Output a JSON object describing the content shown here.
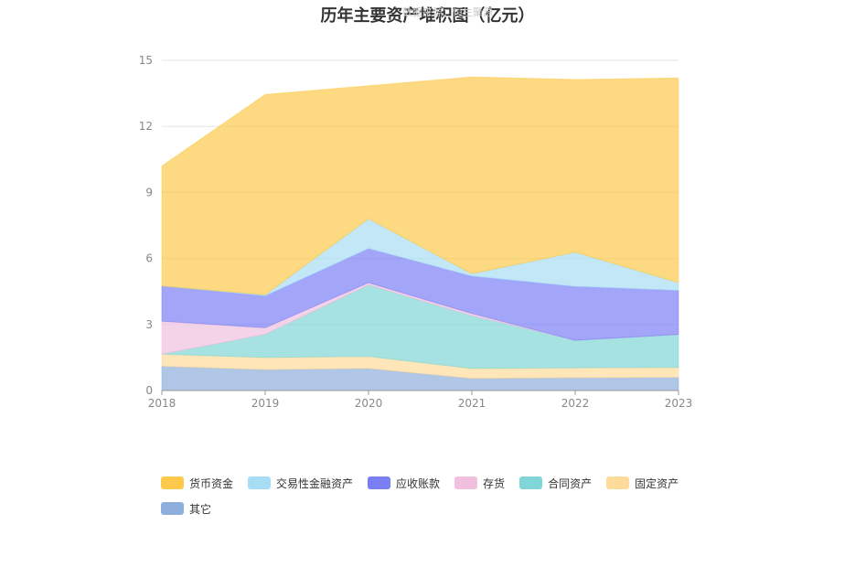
{
  "title": "历年主要资产堆积图（亿元）",
  "watermark": "数据来源：恒生聚源",
  "chart_data": {
    "type": "area",
    "stacked": true,
    "title": "历年主要资产堆积图（亿元）",
    "xlabel": "",
    "ylabel": "",
    "x": [
      "2018",
      "2019",
      "2020",
      "2021",
      "2022",
      "2023"
    ],
    "ylim": [
      0,
      15
    ],
    "yticks": [
      "0",
      "3",
      "6",
      "9",
      "12",
      "15"
    ],
    "grid": true,
    "legend_position": "bottom",
    "series": [
      {
        "name": "其它",
        "color": "#8eaedc",
        "values": [
          1.1,
          0.95,
          1.0,
          0.55,
          0.58,
          0.6
        ]
      },
      {
        "name": "固定资产",
        "color": "#fedb9b",
        "values": [
          0.55,
          0.55,
          0.55,
          0.45,
          0.45,
          0.45
        ]
      },
      {
        "name": "合同资产",
        "color": "#80d6d6",
        "values": [
          0.0,
          1.05,
          3.25,
          2.4,
          1.25,
          1.5
        ]
      },
      {
        "name": "存货",
        "color": "#f0c0de",
        "values": [
          1.5,
          0.3,
          0.1,
          0.1,
          0.0,
          0.0
        ]
      },
      {
        "name": "应收账款",
        "color": "#7b7ff5",
        "values": [
          1.6,
          1.45,
          1.55,
          1.7,
          2.45,
          2.0
        ]
      },
      {
        "name": "交易性金融资产",
        "color": "#a8def5",
        "values": [
          0.0,
          0.05,
          1.35,
          0.1,
          1.55,
          0.35
        ]
      },
      {
        "name": "货币资金",
        "color": "#fcc94b",
        "values": [
          5.45,
          9.1,
          6.05,
          8.95,
          7.85,
          9.3
        ]
      }
    ]
  },
  "legend": [
    {
      "label": "货币资金",
      "color": "#fcc94b"
    },
    {
      "label": "交易性金融资产",
      "color": "#a8def5"
    },
    {
      "label": "应收账款",
      "color": "#7b7ff5"
    },
    {
      "label": "存货",
      "color": "#f0c0de"
    },
    {
      "label": "合同资产",
      "color": "#80d6d6"
    },
    {
      "label": "固定资产",
      "color": "#fedb9b"
    },
    {
      "label": "其它",
      "color": "#8eaedc"
    }
  ]
}
